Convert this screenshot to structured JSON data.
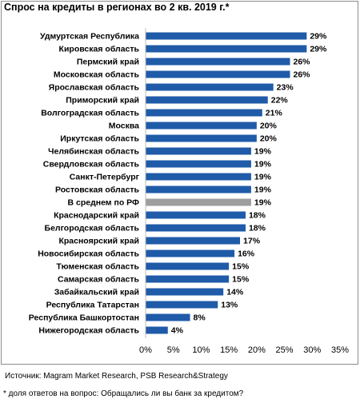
{
  "chart_data": {
    "type": "bar",
    "orientation": "horizontal",
    "title": "Спрос на кредиты в регионах во 2 кв. 2019 г.*",
    "categories": [
      "Удмуртская Республика",
      "Кировская область",
      "Пермский край",
      "Московская область",
      "Ярославская область",
      "Приморский край",
      "Волгоградская область",
      "Москва",
      "Иркутская область",
      "Челябинская область",
      "Свердловская область",
      "Санкт-Петербург",
      "Ростовская область",
      "В среднем по РФ",
      "Краснодарский край",
      "Белгородская область",
      "Красноярский край",
      "Новосибирская область",
      "Тюменская область",
      "Самарская область",
      "Забайкальский край",
      "Республика Татарстан",
      "Республика Башкортостан",
      "Нижегородская область"
    ],
    "values": [
      29,
      29,
      26,
      26,
      23,
      22,
      21,
      20,
      20,
      19,
      19,
      19,
      19,
      19,
      18,
      18,
      17,
      16,
      15,
      15,
      14,
      13,
      8,
      4
    ],
    "value_labels": [
      "29%",
      "29%",
      "26%",
      "26%",
      "23%",
      "22%",
      "21%",
      "20%",
      "20%",
      "19%",
      "19%",
      "19%",
      "19%",
      "19%",
      "18%",
      "18%",
      "17%",
      "16%",
      "15%",
      "15%",
      "14%",
      "13%",
      "8%",
      "4%"
    ],
    "highlight_category": "В среднем по РФ",
    "xlim": [
      0,
      35
    ],
    "xticks": [
      0,
      5,
      10,
      15,
      20,
      25,
      30,
      35
    ],
    "xtick_labels": [
      "0%",
      "5%",
      "10%",
      "15%",
      "20%",
      "25%",
      "30%",
      "35%"
    ],
    "bar_color": "#1f5ba8",
    "highlight_color": "#9e9e9e",
    "grid": false,
    "legend": "none"
  },
  "source": "Источник: Magram Market Research, PSB Research&Strategy",
  "footnote": "* доля ответов на вопрос: Обращались ли вы банк за кредитом?"
}
